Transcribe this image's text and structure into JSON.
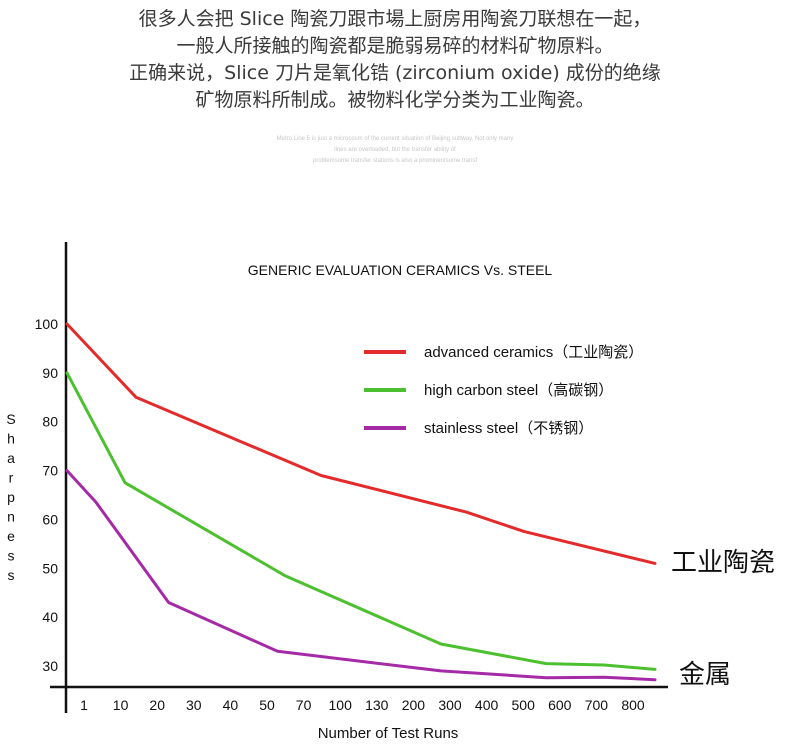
{
  "intro": {
    "lines": [
      "很多人会把 Slice 陶瓷刀跟市場上厨房用陶瓷刀联想在一起，",
      "一般人所接触的陶瓷都是脆弱易碎的材料矿物原料。",
      "正确来说，Slice 刀片是氧化锆 (zirconium oxide) 成份的绝缘",
      "矿物原料所制成。被物料化学分类为工业陶瓷。"
    ],
    "small_lines": [
      "Metro Line 5 is just a microcosm of the current situation of Beijing subway. Not only many",
      "lines are overloaded, but the transfer ability of",
      "problemsome transfer stations is also a prominentsome transf"
    ]
  },
  "chart_data": {
    "type": "line",
    "title": "GENERIC EVALUATION CERAMICS Vs. STEEL",
    "xlabel": "Number of Test Runs",
    "ylabel": "Sharpness",
    "categories": [
      "1",
      "10",
      "20",
      "30",
      "40",
      "50",
      "70",
      "100",
      "130",
      "200",
      "300",
      "400",
      "500",
      "600",
      "700",
      "800"
    ],
    "yticks": [
      30,
      40,
      50,
      60,
      70,
      80,
      90,
      100
    ],
    "ylim": [
      26,
      112
    ],
    "grid": false,
    "legend_position": "top-right",
    "series": [
      {
        "name": "advanced ceramics（工业陶瓷）",
        "color": "#e32b2b",
        "points": [
          [
            0,
            100
          ],
          [
            1.9,
            85
          ],
          [
            7,
            69
          ],
          [
            11,
            61.5
          ],
          [
            12.6,
            57.5
          ],
          [
            16.2,
            51
          ]
        ]
      },
      {
        "name": "high carbon steel（高碳钢）",
        "color": "#4cc02e",
        "points": [
          [
            0,
            90
          ],
          [
            1.6,
            67.5
          ],
          [
            6,
            48.5
          ],
          [
            10.3,
            34.5
          ],
          [
            13.2,
            30.5
          ],
          [
            14.8,
            30.2
          ],
          [
            16.2,
            29.3
          ]
        ]
      },
      {
        "name": "stainless steel（不锈钢）",
        "color": "#a52aa6",
        "points": [
          [
            0,
            70
          ],
          [
            0.8,
            63.5
          ],
          [
            2.8,
            43
          ],
          [
            5.8,
            33
          ],
          [
            10.3,
            29
          ],
          [
            13.2,
            27.6
          ],
          [
            14.8,
            27.7
          ],
          [
            16.2,
            27.2
          ]
        ]
      }
    ],
    "end_labels": [
      "工业陶瓷",
      "金属"
    ]
  }
}
